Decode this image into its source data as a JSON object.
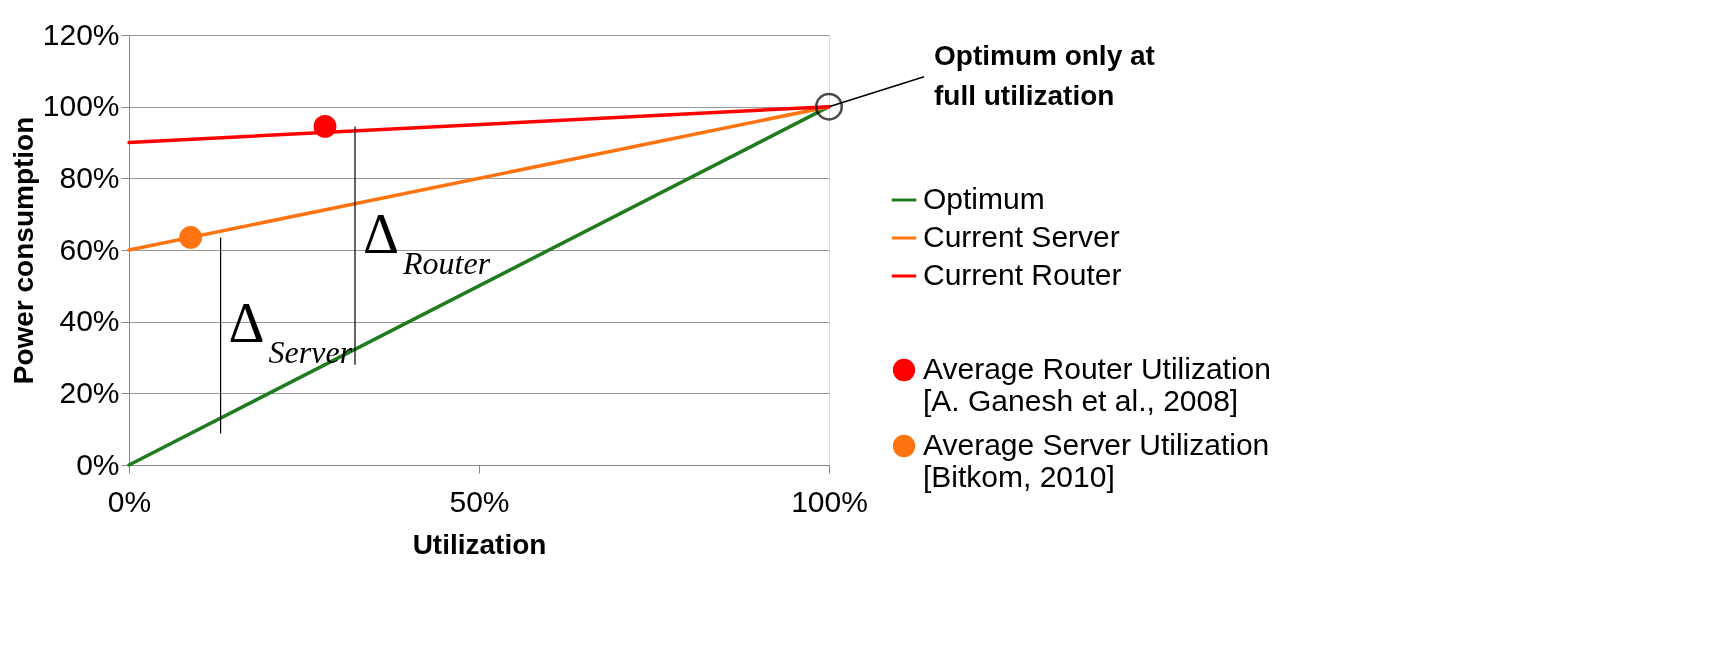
{
  "chart_data": {
    "type": "line",
    "xlabel": "Utilization",
    "ylabel": "Power consumption",
    "series": [
      {
        "name": "Optimum",
        "color": "#1e7b1e",
        "x": [
          0,
          100
        ],
        "values": [
          0,
          100
        ]
      },
      {
        "name": "Current Server",
        "color": "#ff7410",
        "x": [
          0,
          100
        ],
        "values": [
          60,
          100
        ]
      },
      {
        "name": "Current Router",
        "color": "#ff0000",
        "x": [
          0,
          100
        ],
        "values": [
          90,
          100
        ]
      },
      {
        "name": "Average Router Utilization\n[A. Ganesh et al., 2008]",
        "type": "scatter",
        "color": "#ff0000",
        "x": [
          28
        ],
        "values": [
          94.5
        ]
      },
      {
        "name": "Average Server Utilization\n[Bitkom, 2010]",
        "type": "scatter",
        "color": "#ff7410",
        "x": [
          8.8
        ],
        "values": [
          63.5
        ]
      }
    ],
    "xlim": [
      0,
      100
    ],
    "xticks": [
      {
        "value": 0,
        "label": "0%"
      },
      {
        "value": 50,
        "label": "50%"
      },
      {
        "value": 100,
        "label": "100%"
      }
    ],
    "ylim": [
      0,
      120
    ],
    "yticks": [
      {
        "value": 0,
        "label": "0%"
      },
      {
        "value": 20,
        "label": "20%"
      },
      {
        "value": 40,
        "label": "40%"
      },
      {
        "value": 60,
        "label": "60%"
      },
      {
        "value": 80,
        "label": "80%"
      },
      {
        "value": 100,
        "label": "100%"
      },
      {
        "value": 120,
        "label": "120%"
      }
    ],
    "grid": "y",
    "legend": "right",
    "annotations": [
      {
        "text": "Optimum only at\nfull utilization",
        "x": 100,
        "y": 100
      },
      {
        "text": "Δ$_{Router}$",
        "x": 28,
        "y": 94.5
      },
      {
        "text": "Δ$_{Server}$",
        "x": 8.8,
        "y": 63.5
      }
    ]
  }
}
